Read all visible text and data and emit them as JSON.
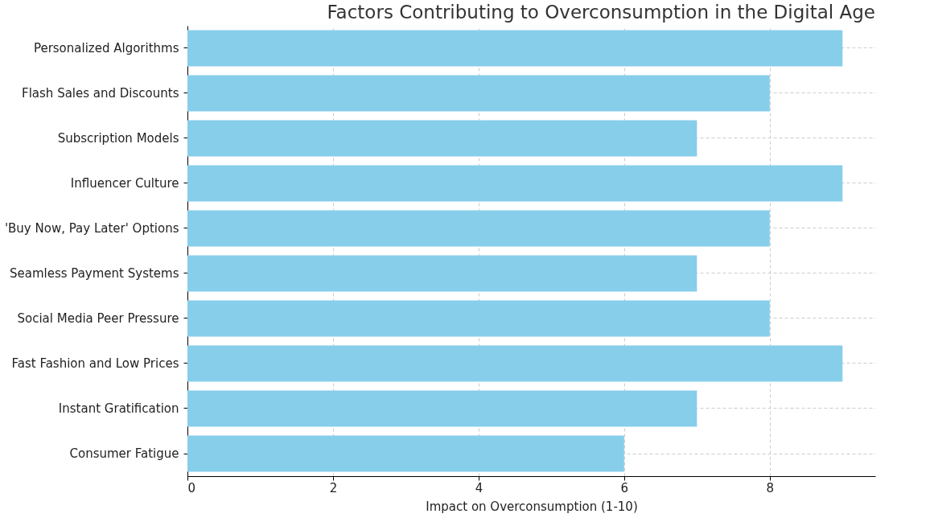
{
  "chart_data": {
    "type": "bar",
    "orientation": "horizontal",
    "title": "Factors Contributing to Overconsumption in the Digital Age",
    "xlabel": "Impact on Overconsumption (1-10)",
    "categories": [
      "Personalized Algorithms",
      "Flash Sales and Discounts",
      "Subscription Models",
      "Influencer Culture",
      "'Buy Now, Pay Later' Options",
      "Seamless Payment Systems",
      "Social Media Peer Pressure",
      "Fast Fashion and Low Prices",
      "Instant Gratification",
      "Consumer Fatigue"
    ],
    "values": [
      9,
      8,
      7,
      9,
      8,
      7,
      8,
      9,
      7,
      6
    ],
    "color": "#87ceeb",
    "xlim": [
      0,
      9.45
    ],
    "xticks": [
      0,
      2,
      4,
      6,
      8
    ],
    "grid": true
  }
}
